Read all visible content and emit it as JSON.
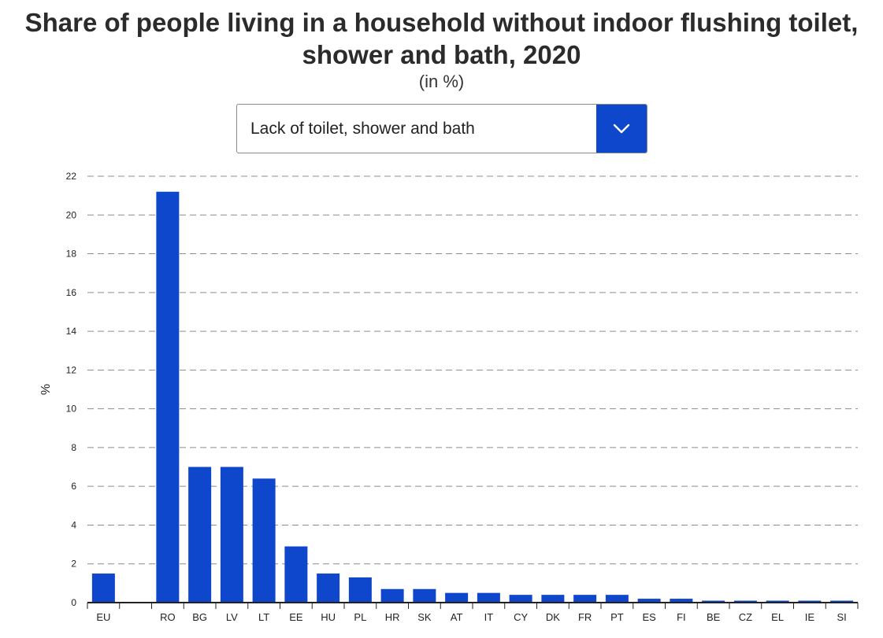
{
  "title_line1": "Share of people living in a household without indoor flushing toilet,",
  "title_line2": "shower and bath, 2020",
  "subtitle": "(in %)",
  "dropdown": {
    "selected": "Lack of toilet, shower and bath",
    "icon": "chevron-down-icon"
  },
  "colors": {
    "bar": "#0e47cb",
    "grid": "#8c8c8c",
    "axis": "#222222"
  },
  "chart_data": {
    "type": "bar",
    "title": "Share of people living in a household without indoor flushing toilet, shower and bath, 2020",
    "subtitle": "(in %)",
    "xlabel": "",
    "ylabel": "%",
    "ylim": [
      0,
      22
    ],
    "yticks": [
      0,
      2,
      4,
      6,
      8,
      10,
      12,
      14,
      16,
      18,
      20,
      22
    ],
    "grid": true,
    "categories": [
      "EU",
      "",
      "RO",
      "BG",
      "LV",
      "LT",
      "EE",
      "HU",
      "PL",
      "HR",
      "SK",
      "AT",
      "IT",
      "CY",
      "DK",
      "FR",
      "PT",
      "ES",
      "FI",
      "BE",
      "CZ",
      "EL",
      "IE",
      "SI"
    ],
    "values": [
      1.5,
      null,
      21.2,
      7.0,
      7.0,
      6.4,
      2.9,
      1.5,
      1.3,
      0.7,
      0.7,
      0.5,
      0.5,
      0.4,
      0.4,
      0.4,
      0.4,
      0.2,
      0.2,
      0.1,
      0.1,
      0.1,
      0.1,
      0.1
    ]
  }
}
